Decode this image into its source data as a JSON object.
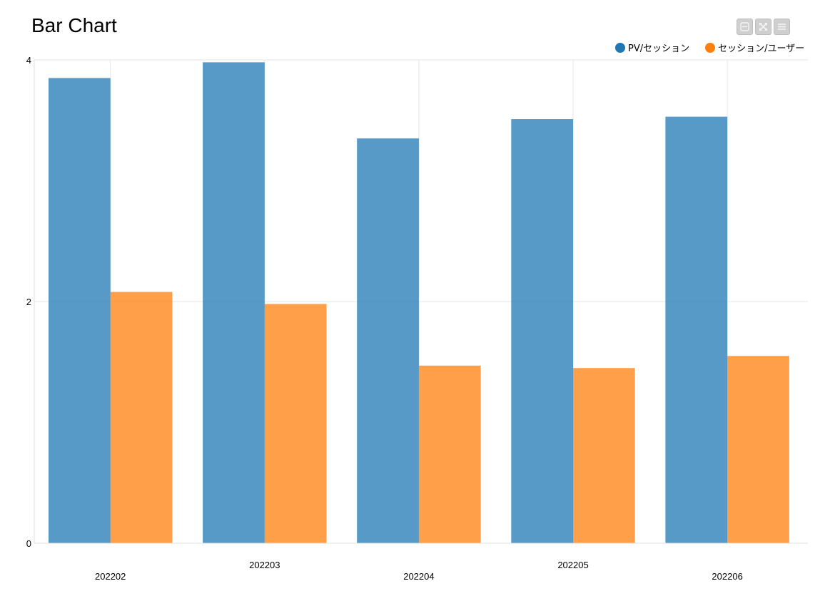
{
  "title": "Bar Chart",
  "toolbar": {
    "icons": [
      "minimize-icon",
      "expand-icon",
      "menu-icon"
    ]
  },
  "legend": {
    "items": [
      {
        "label": "PV/セッション",
        "color": "#1f77b4"
      },
      {
        "label": "セッション/ユーザー",
        "color": "#ff7f0e"
      }
    ]
  },
  "chart_data": {
    "type": "bar",
    "title": "Bar Chart",
    "xlabel": "",
    "ylabel": "",
    "categories": [
      "202202",
      "202203",
      "202204",
      "202205",
      "202206"
    ],
    "series": [
      {
        "name": "PV/セッション",
        "color": "#1f77b4",
        "values": [
          3.85,
          3.98,
          3.35,
          3.51,
          3.53
        ]
      },
      {
        "name": "セッション/ユーザー",
        "color": "#ff7f0e",
        "values": [
          2.08,
          1.98,
          1.47,
          1.45,
          1.55
        ]
      }
    ],
    "ylim": [
      0,
      4
    ],
    "yticks": [
      0,
      2,
      4
    ],
    "grid": true,
    "legend_position": "top-right"
  }
}
